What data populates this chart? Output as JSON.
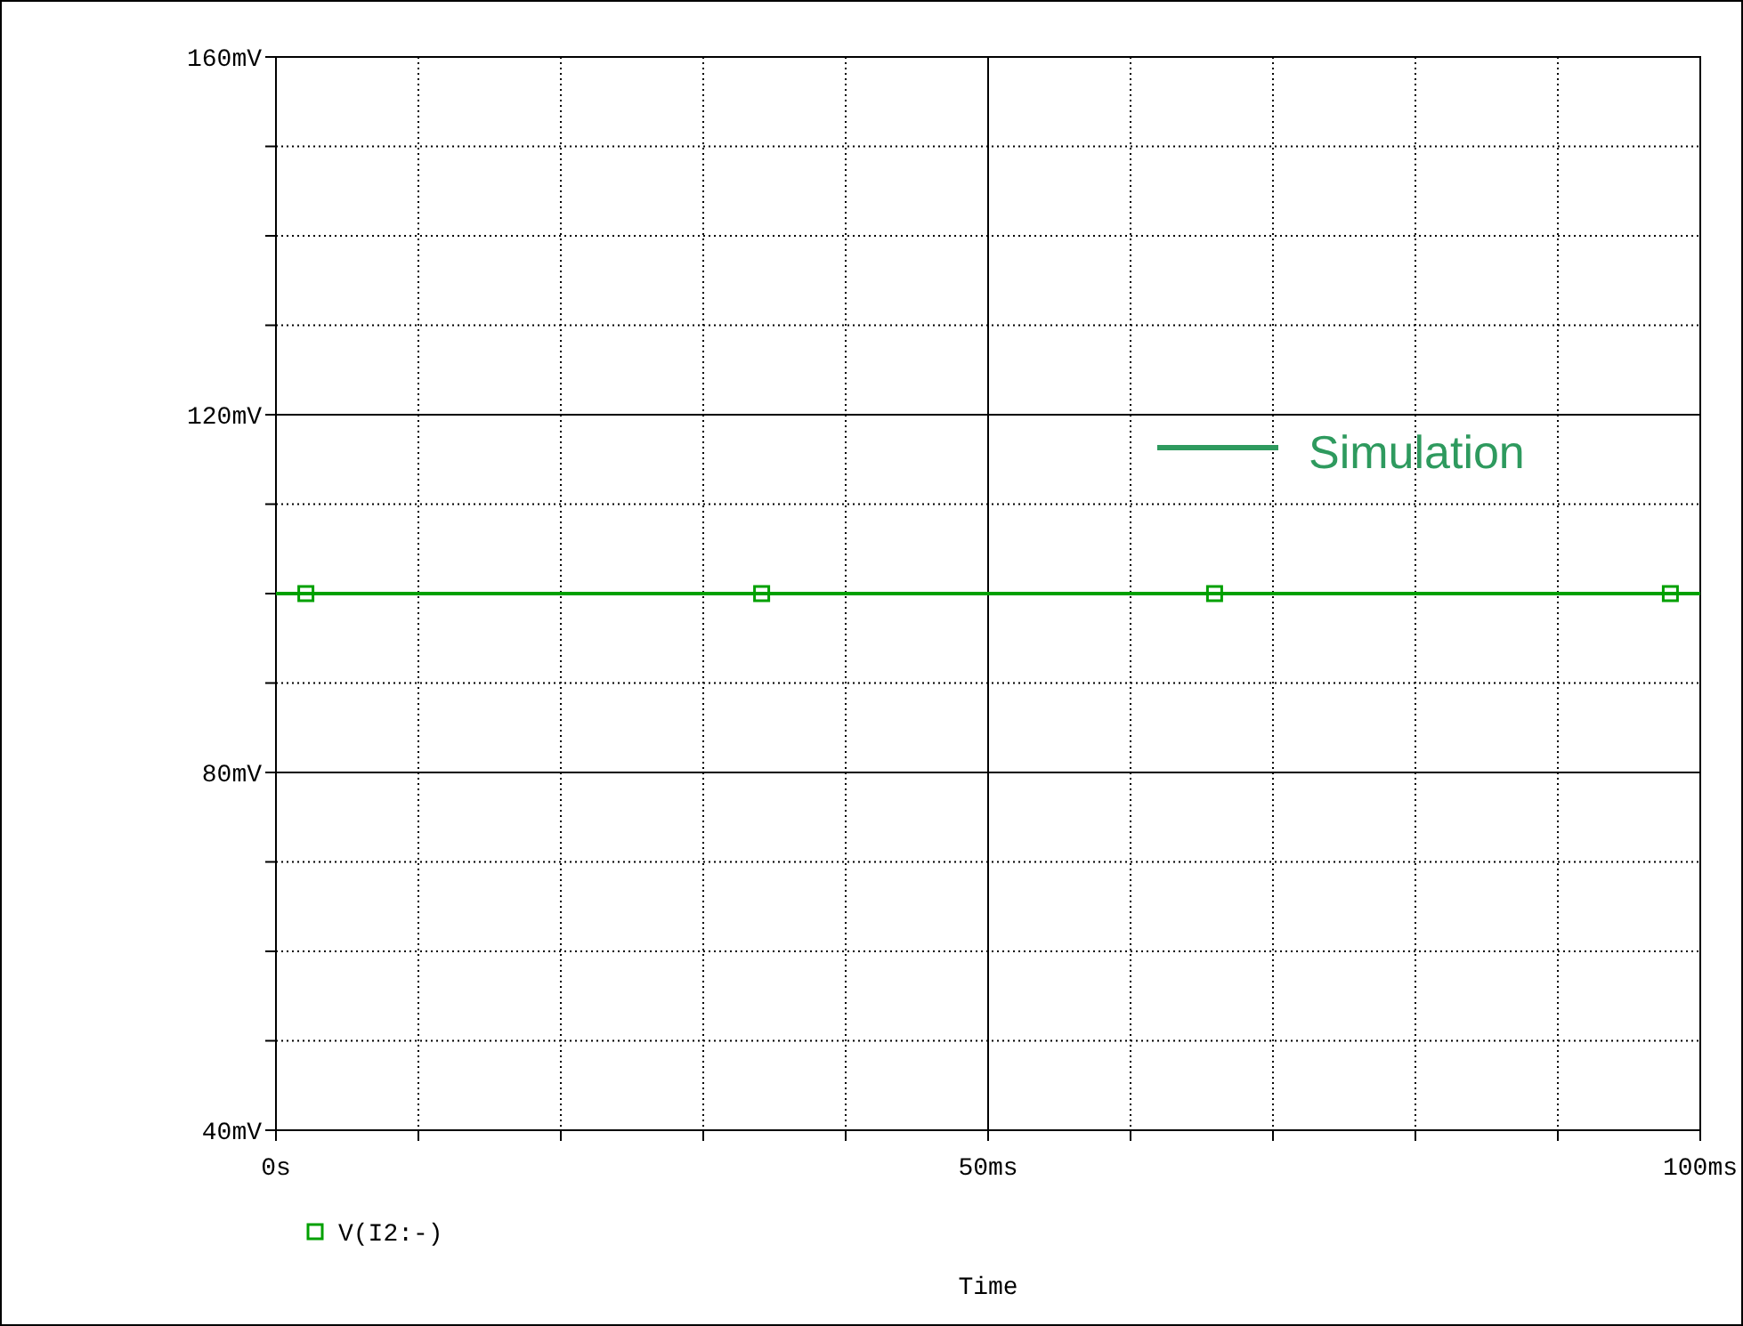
{
  "chart_data": {
    "type": "line",
    "xlabel": "Time",
    "xlim": [
      0,
      100
    ],
    "ylim": [
      40,
      160
    ],
    "xticks": [
      {
        "value": 0,
        "label": "0s"
      },
      {
        "value": 10,
        "label": null
      },
      {
        "value": 20,
        "label": null
      },
      {
        "value": 30,
        "label": null
      },
      {
        "value": 40,
        "label": null
      },
      {
        "value": 50,
        "label": "50ms"
      },
      {
        "value": 60,
        "label": null
      },
      {
        "value": 70,
        "label": null
      },
      {
        "value": 80,
        "label": null
      },
      {
        "value": 90,
        "label": null
      },
      {
        "value": 100,
        "label": "100ms"
      }
    ],
    "yticks": [
      {
        "value": 40,
        "label": "40mV"
      },
      {
        "value": 50,
        "label": null
      },
      {
        "value": 60,
        "label": null
      },
      {
        "value": 70,
        "label": null
      },
      {
        "value": 80,
        "label": "80mV"
      },
      {
        "value": 90,
        "label": null
      },
      {
        "value": 100,
        "label": null
      },
      {
        "value": 110,
        "label": null
      },
      {
        "value": 120,
        "label": "120mV"
      },
      {
        "value": 130,
        "label": null
      },
      {
        "value": 140,
        "label": null
      },
      {
        "value": 150,
        "label": null
      },
      {
        "value": 160,
        "label": "160mV"
      }
    ],
    "grid": true,
    "legend": "bottom left",
    "series": [
      {
        "color": "#00a000",
        "x": [
          0,
          100
        ],
        "values": [
          100,
          100
        ]
      },
      {
        "type": "scatter",
        "name": "V(I2:-)",
        "color": "#00a000",
        "marker": "square",
        "x": [
          2.1,
          34.1,
          65.9,
          97.9
        ],
        "values": [
          100,
          100,
          100,
          100
        ]
      }
    ],
    "annotations": [
      "Simulation"
    ]
  }
}
